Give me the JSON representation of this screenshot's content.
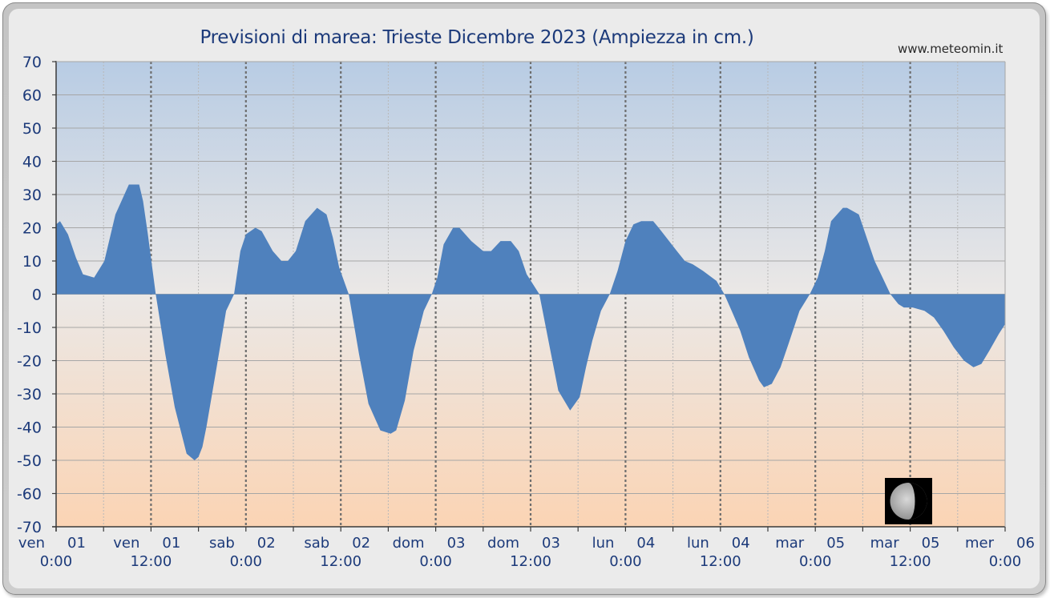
{
  "chart_data": {
    "type": "area",
    "title": "Previsioni di marea: Trieste Dicembre 2023 (Ampiezza in cm.)",
    "source_label": "www.meteomin.it",
    "xlabel": "",
    "ylabel": "",
    "ylim": [
      -70,
      70
    ],
    "yticks": [
      70,
      60,
      50,
      40,
      30,
      20,
      10,
      0,
      -10,
      -20,
      -30,
      -40,
      -50,
      -60,
      -70
    ],
    "xlim_hours": [
      0,
      120
    ],
    "grid": true,
    "fill_color": "#4f81bd",
    "x_tick_labels": [
      {
        "hour": 0,
        "day": "ven",
        "date": "01",
        "time": "0:00"
      },
      {
        "hour": 12,
        "day": "ven",
        "date": "01",
        "time": "12:00"
      },
      {
        "hour": 24,
        "day": "sab",
        "date": "02",
        "time": "0:00"
      },
      {
        "hour": 36,
        "day": "sab",
        "date": "02",
        "time": "12:00"
      },
      {
        "hour": 48,
        "day": "dom",
        "date": "03",
        "time": "0:00"
      },
      {
        "hour": 60,
        "day": "dom",
        "date": "03",
        "time": "12:00"
      },
      {
        "hour": 72,
        "day": "lun",
        "date": "04",
        "time": "0:00"
      },
      {
        "hour": 84,
        "day": "lun",
        "date": "04",
        "time": "12:00"
      },
      {
        "hour": 96,
        "day": "mar",
        "date": "05",
        "time": "0:00"
      },
      {
        "hour": 108,
        "day": "mar",
        "date": "05",
        "time": "12:00"
      },
      {
        "hour": 120,
        "day": "mer",
        "date": "06",
        "time": "0:00"
      }
    ],
    "series": [
      {
        "x_hours": [
          0,
          0.5,
          1.5,
          2.5,
          3.4,
          4.8,
          6.1,
          7.5,
          9.2,
          10.5,
          11.0,
          11.6,
          12.6,
          13.8,
          15.0,
          16.5,
          17.5,
          18.0,
          18.5,
          19.0,
          20.3,
          21.5,
          22.5,
          23.3,
          24.0,
          25.2,
          26.0,
          27.4,
          28.5,
          29.3,
          30.3,
          31.5,
          33.0,
          34.2,
          35.0,
          35.8,
          37.0,
          38.3,
          39.5,
          41.0,
          42.3,
          43.0,
          44.1,
          45.2,
          46.5,
          47.5,
          48.2,
          49.0,
          50.2,
          51.0,
          52.5,
          54.0,
          55.0,
          56.2,
          57.5,
          58.5,
          59.5,
          61.1,
          62.5,
          63.5,
          65.0,
          66.2,
          67.0,
          67.8,
          68.9,
          70.0,
          71.0,
          72.0,
          73.0,
          74.0,
          75.5,
          76.2,
          78.5,
          79.5,
          80.5,
          81.8,
          83.5,
          84.5,
          85.6,
          86.5,
          87.6,
          88.9,
          89.5,
          90.5,
          91.6,
          92.6,
          94.0,
          95.3,
          96.3,
          97.2,
          98.0,
          99.5,
          100.0,
          101.5,
          102.5,
          103.5,
          104.5,
          105.5,
          106.5,
          107.2,
          108.3,
          109.8,
          111.0,
          112.2,
          113.5,
          114.8,
          116.0,
          117.0,
          118.0,
          119.2,
          120.0
        ],
        "y_cm": [
          21,
          22,
          18,
          11,
          6,
          5,
          10,
          24,
          33,
          33,
          28,
          18,
          0,
          -18,
          -34,
          -48,
          -50,
          -49,
          -46,
          -40,
          -22,
          -5,
          0,
          13,
          18,
          20,
          19,
          13,
          10,
          10,
          13,
          22,
          26,
          24,
          17,
          8,
          0,
          -18,
          -33,
          -41,
          -42,
          -41,
          -32,
          -17,
          -5,
          0,
          5,
          15,
          20,
          20,
          16,
          13,
          13,
          16,
          16,
          13,
          6,
          0,
          -17,
          -29,
          -35,
          -31,
          -22,
          -14,
          -5,
          0,
          7,
          16,
          21,
          22,
          22,
          20,
          13,
          10,
          9,
          7,
          4,
          0,
          -6,
          -11,
          -19,
          -26,
          -28,
          -27,
          -22,
          -15,
          -5,
          0,
          5,
          13,
          22,
          26,
          26,
          24,
          17,
          10,
          5,
          0,
          -3,
          -4,
          -4,
          -5,
          -7,
          -11,
          -16,
          -20,
          -22,
          -21,
          -17,
          -12,
          -9
        ]
      }
    ],
    "annotation": "moon-phase-waning-crescent"
  }
}
